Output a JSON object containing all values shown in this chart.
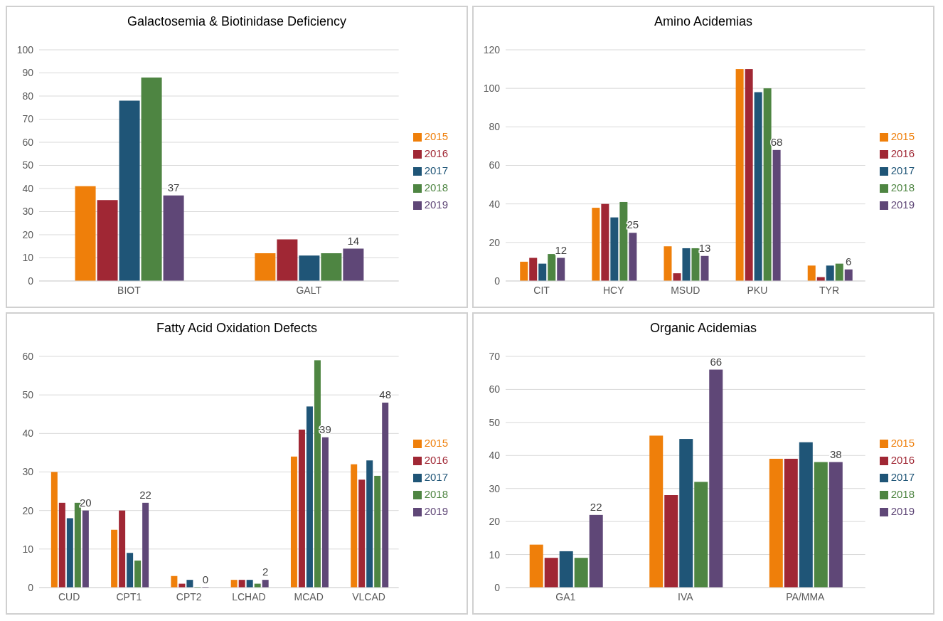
{
  "chart_data": [
    {
      "type": "bar",
      "title": "Galactosemia & Biotinidase Deficiency",
      "categories": [
        "BIOT",
        "GALT"
      ],
      "series": [
        {
          "name": "2015",
          "color": "#ef7f0a",
          "values": [
            41,
            12
          ]
        },
        {
          "name": "2016",
          "color": "#a02734",
          "values": [
            35,
            18
          ]
        },
        {
          "name": "2017",
          "color": "#1f5577",
          "values": [
            78,
            11
          ]
        },
        {
          "name": "2018",
          "color": "#4e8542",
          "values": [
            88,
            12
          ]
        },
        {
          "name": "2019",
          "color": "#5f4777",
          "values": [
            37,
            14
          ],
          "value_labels": [
            "37",
            "14"
          ]
        }
      ],
      "ylim": [
        0,
        100
      ],
      "yticks": [
        0,
        10,
        20,
        30,
        40,
        50,
        60,
        70,
        80,
        90,
        100
      ],
      "grid": "y",
      "legend": "right"
    },
    {
      "type": "bar",
      "title": "Amino Acidemias",
      "categories": [
        "CIT",
        "HCY",
        "MSUD",
        "PKU",
        "TYR"
      ],
      "series": [
        {
          "name": "2015",
          "color": "#ef7f0a",
          "values": [
            10,
            38,
            18,
            110,
            8
          ]
        },
        {
          "name": "2016",
          "color": "#a02734",
          "values": [
            12,
            40,
            4,
            110,
            2
          ]
        },
        {
          "name": "2017",
          "color": "#1f5577",
          "values": [
            9,
            33,
            17,
            98,
            8
          ]
        },
        {
          "name": "2018",
          "color": "#4e8542",
          "values": [
            14,
            41,
            17,
            100,
            9
          ]
        },
        {
          "name": "2019",
          "color": "#5f4777",
          "values": [
            12,
            25,
            13,
            68,
            6
          ],
          "value_labels": [
            "12",
            "25",
            "13",
            "68",
            "6"
          ]
        }
      ],
      "ylim": [
        0,
        120
      ],
      "yticks": [
        0,
        20,
        40,
        60,
        80,
        100,
        120
      ],
      "grid": "y",
      "legend": "right"
    },
    {
      "type": "bar",
      "title": "Fatty Acid Oxidation Defects",
      "categories": [
        "CUD",
        "CPT1",
        "CPT2",
        "LCHAD",
        "MCAD",
        "VLCAD"
      ],
      "series": [
        {
          "name": "2015",
          "color": "#ef7f0a",
          "values": [
            30,
            15,
            3,
            2,
            34,
            32
          ]
        },
        {
          "name": "2016",
          "color": "#a02734",
          "values": [
            22,
            20,
            1,
            2,
            41,
            28
          ]
        },
        {
          "name": "2017",
          "color": "#1f5577",
          "values": [
            18,
            9,
            2,
            2,
            47,
            33
          ]
        },
        {
          "name": "2018",
          "color": "#4e8542",
          "values": [
            22,
            7,
            0,
            1,
            59,
            29
          ]
        },
        {
          "name": "2019",
          "color": "#5f4777",
          "values": [
            20,
            22,
            0,
            2,
            39,
            48
          ],
          "value_labels": [
            "20",
            "22",
            "0",
            "2",
            "39",
            "48"
          ]
        }
      ],
      "ylim": [
        0,
        60
      ],
      "yticks": [
        0,
        10,
        20,
        30,
        40,
        50,
        60
      ],
      "grid": "y",
      "legend": "right"
    },
    {
      "type": "bar",
      "title": "Organic Acidemias",
      "categories": [
        "GA1",
        "IVA",
        "PA/MMA"
      ],
      "series": [
        {
          "name": "2015",
          "color": "#ef7f0a",
          "values": [
            13,
            46,
            39
          ]
        },
        {
          "name": "2016",
          "color": "#a02734",
          "values": [
            9,
            28,
            39
          ]
        },
        {
          "name": "2017",
          "color": "#1f5577",
          "values": [
            11,
            45,
            44
          ]
        },
        {
          "name": "2018",
          "color": "#4e8542",
          "values": [
            9,
            32,
            38
          ]
        },
        {
          "name": "2019",
          "color": "#5f4777",
          "values": [
            22,
            66,
            38
          ],
          "value_labels": [
            "22",
            "66",
            "38"
          ]
        }
      ],
      "ylim": [
        0,
        70
      ],
      "yticks": [
        0,
        10,
        20,
        30,
        40,
        50,
        60,
        70
      ],
      "grid": "y",
      "legend": "right"
    }
  ]
}
